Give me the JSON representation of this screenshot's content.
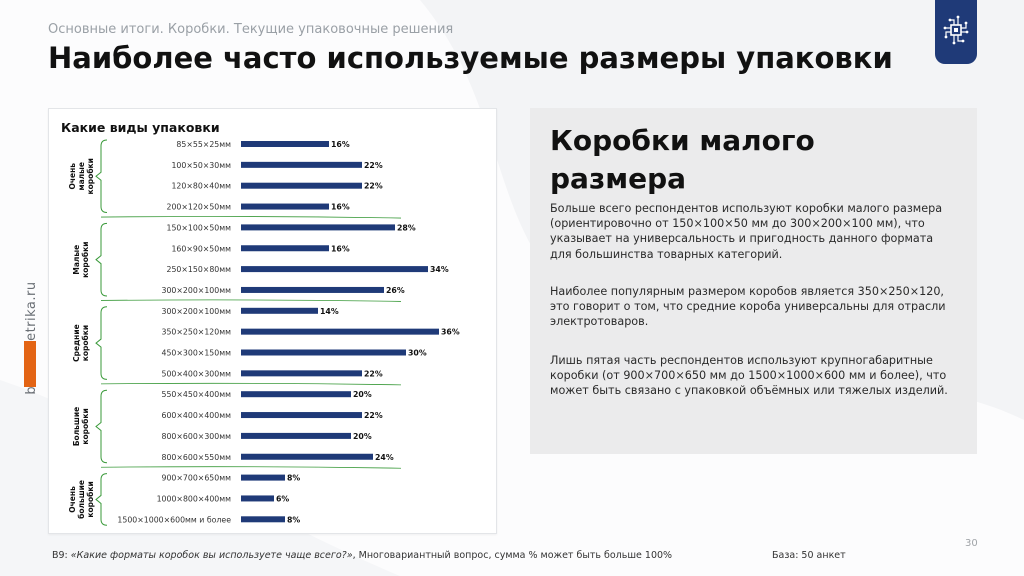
{
  "header": {
    "breadcrumb": "Основные итоги. Коробки. Текущие упаковочные решения",
    "title": "Наиболее часто используемые размеры упаковки"
  },
  "sidebar": {
    "brand": "brandmetrika.ru"
  },
  "logo": {
    "icon": "circuit-chip-icon"
  },
  "colors": {
    "bar": "#1f3a78",
    "bracket": "#3a9a3a",
    "accent": "#e36414",
    "logo_bg": "#1f3a78"
  },
  "chart_data": {
    "type": "bar",
    "orientation": "horizontal",
    "title": "Какие виды упаковки",
    "value_suffix": "%",
    "xlim": [
      0,
      36
    ],
    "groups": [
      {
        "label": "Очень малые коробки",
        "items": [
          {
            "category": "85×55×25мм",
            "value": 16
          },
          {
            "category": "100×50×30мм",
            "value": 22
          },
          {
            "category": "120×80×40мм",
            "value": 22
          },
          {
            "category": "200×120×50мм",
            "value": 16
          }
        ]
      },
      {
        "label": "Малые коробки",
        "items": [
          {
            "category": "150×100×50мм",
            "value": 28
          },
          {
            "category": "160×90×50мм",
            "value": 16
          },
          {
            "category": "250×150×80мм",
            "value": 34
          },
          {
            "category": "300×200×100мм",
            "value": 26
          }
        ]
      },
      {
        "label": "Средние коробки",
        "items": [
          {
            "category": "300×200×100мм",
            "value": 14
          },
          {
            "category": "350×250×120мм",
            "value": 36
          },
          {
            "category": "450×300×150мм",
            "value": 30
          },
          {
            "category": "500×400×300мм",
            "value": 22
          }
        ]
      },
      {
        "label": "Большие коробки",
        "items": [
          {
            "category": "550×450×400мм",
            "value": 20
          },
          {
            "category": "600×400×400мм",
            "value": 22
          },
          {
            "category": "800×600×300мм",
            "value": 20
          },
          {
            "category": "800×600×550мм",
            "value": 24
          }
        ]
      },
      {
        "label": "Очень большие коробки",
        "items": [
          {
            "category": "900×700×650мм",
            "value": 8
          },
          {
            "category": "1000×800×400мм",
            "value": 6
          },
          {
            "category": "1500×1000×600мм и более",
            "value": 8
          }
        ]
      }
    ]
  },
  "info": {
    "title": "Коробки малого размера",
    "paragraphs": [
      "Больше всего респондентов используют коробки малого размера (ориентировочно от 150×100×50 мм до 300×200×100 мм), что указывает на универсальность и пригодность данного формата для большинства товарных категорий.",
      "Наиболее популярным размером коробов является 350×250×120, это говорит о том, что средние короба универсальны для отрасли электротоваров.",
      "Лишь пятая часть респондентов используют крупногабаритные коробки (от 900×700×650 мм до 1500×1000×600 мм и более), что может быть связано с упаковкой объёмных или тяжелых изделий."
    ]
  },
  "footer": {
    "question_prefix": "В9: ",
    "question_text": "«Какие форматы коробок вы используете чаще всего?»",
    "question_suffix": ", Многовариантный вопрос, сумма % может быть больше 100%",
    "base": "База: 50 анкет",
    "page_number": "30"
  }
}
